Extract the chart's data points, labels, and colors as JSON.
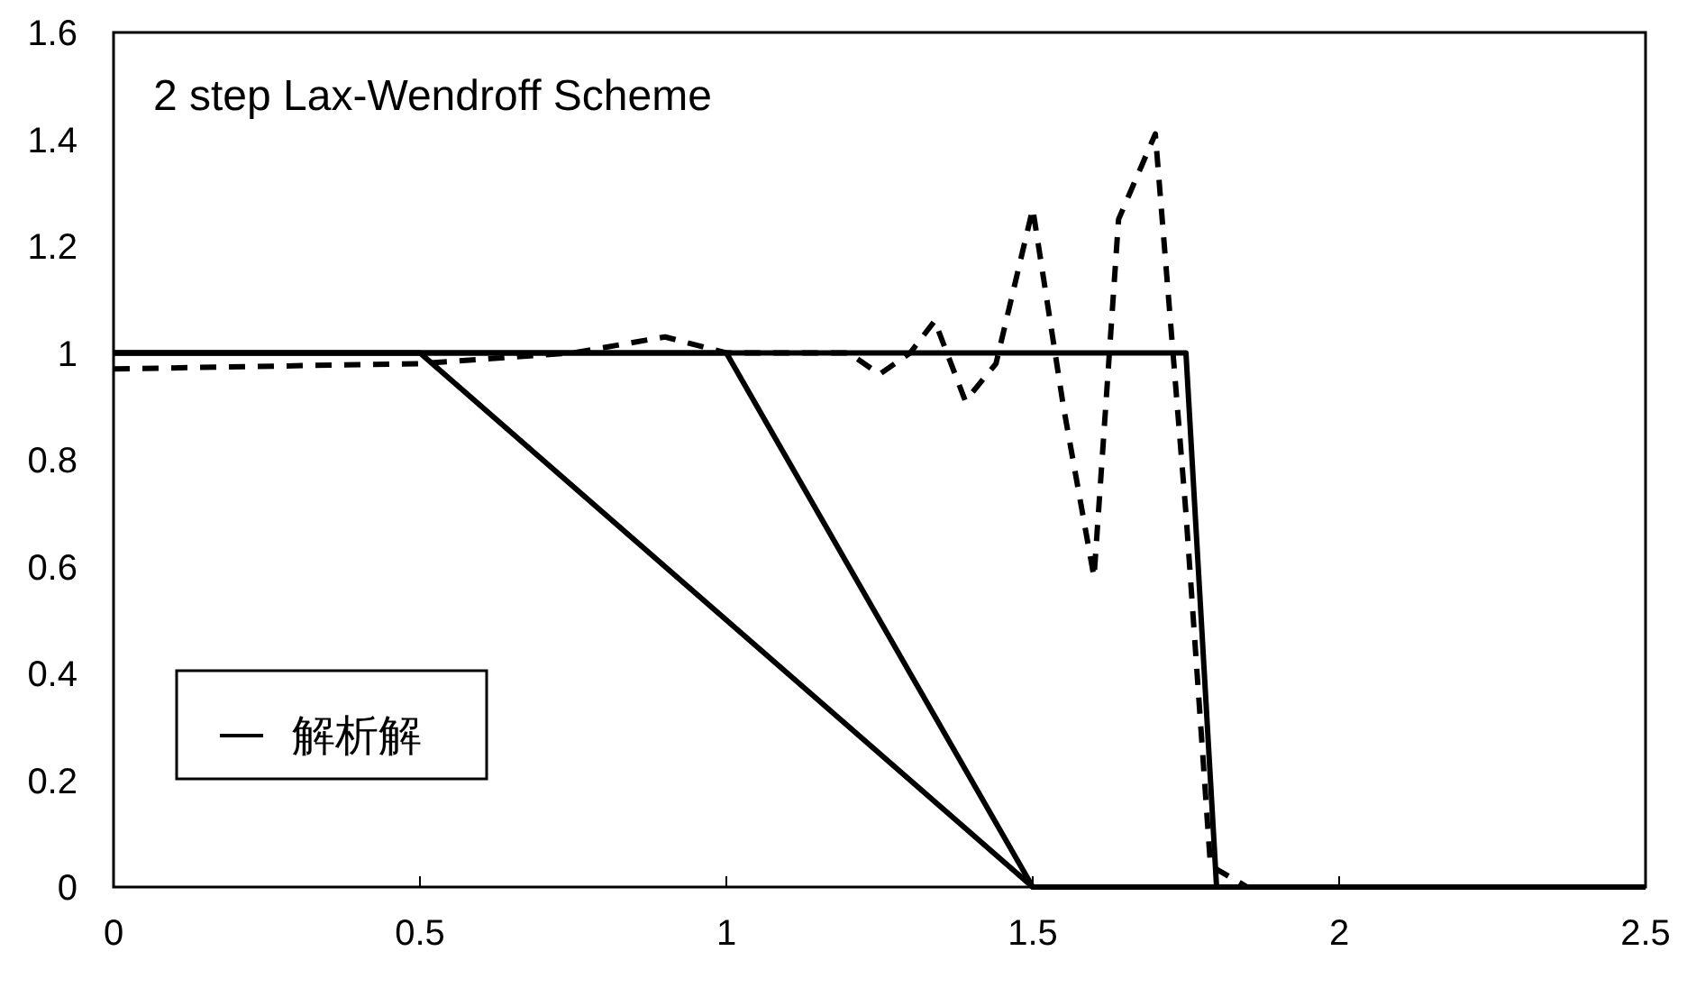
{
  "chart_data": {
    "type": "line",
    "title": "2 step Lax-Wendroff Scheme",
    "xlim": [
      0,
      2.5
    ],
    "xticks": [
      0,
      0.5,
      1,
      1.5,
      2,
      2.5
    ],
    "ylim": [
      0,
      1.6
    ],
    "yticks": [
      0,
      0.2,
      0.4,
      0.6,
      0.8,
      1,
      1.2,
      1.4,
      1.6
    ],
    "grid": false,
    "legend": "bottom left",
    "marker": "none",
    "series": [
      {
        "name": "解析解",
        "color": "#000000",
        "line_style": "solid",
        "x": [
          0,
          0.5,
          1.5,
          2.5
        ],
        "values": [
          1,
          1,
          0,
          0
        ]
      },
      {
        "color": "#000000",
        "line_style": "solid",
        "x": [
          0,
          1,
          1.5,
          2.5
        ],
        "values": [
          1,
          1,
          0,
          0
        ]
      },
      {
        "color": "#000000",
        "line_style": "solid",
        "x": [
          0,
          1.75,
          1.8,
          2.5
        ],
        "values": [
          1,
          1,
          0,
          0
        ]
      },
      {
        "color": "#000000",
        "line_style": "dashed",
        "x": [
          0,
          0.5,
          0.75,
          0.9,
          1.0,
          1.2,
          1.25,
          1.3,
          1.34,
          1.39,
          1.44,
          1.5,
          1.55,
          1.6,
          1.64,
          1.7,
          1.75,
          1.79,
          1.85,
          2.5
        ],
        "values": [
          0.97,
          0.98,
          1.0,
          1.03,
          1.0,
          1.0,
          0.96,
          1.0,
          1.06,
          0.91,
          0.98,
          1.27,
          0.9,
          0.58,
          1.25,
          1.41,
          0.7,
          0.04,
          0,
          0
        ]
      }
    ]
  }
}
